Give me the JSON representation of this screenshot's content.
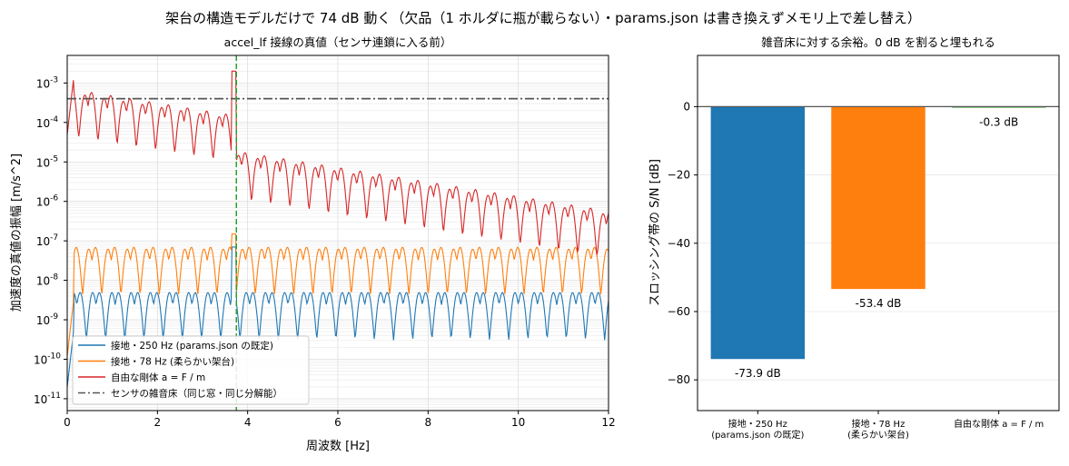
{
  "figure_title": "架台の構造モデルだけで 74 dB 動く（欠品（1 ホルダに瓶が載らない）・params.json は書き換えずメモリ上で差し替え）",
  "chart_data": [
    {
      "type": "line",
      "title": "accel_lf 接線の真値（センサ連鎖に入る前）",
      "xlabel": "周波数 [Hz]",
      "ylabel": "加速度の真値の振幅 [m/s^2]",
      "xlim": [
        0,
        12
      ],
      "ylim": [
        5e-12,
        0.005
      ],
      "yscale": "log",
      "grid": true,
      "legend_position": "lower-left",
      "x_ticks": [
        "0",
        "2",
        "4",
        "6",
        "8",
        "10",
        "12"
      ],
      "y_ticks": [
        "10^-11",
        "10^-10",
        "10^-9",
        "10^-8",
        "10^-7",
        "10^-6",
        "10^-5",
        "10^-4",
        "10^-3"
      ],
      "vline": {
        "x": 3.75,
        "color": "#2ca02c"
      },
      "series": [
        {
          "name": "接地・250 Hz (params.json の既定)",
          "color": "#1f77b4",
          "style": "solid",
          "base": 1.5e-09,
          "peak": 7e-08,
          "low_end": 2e-11,
          "envelope": "flat"
        },
        {
          "name": "接地・78 Hz (柔らかい架台)",
          "color": "#ff7f0e",
          "style": "solid",
          "base": 2e-08,
          "peak": 1.5e-07,
          "low_end": 1.2e-10,
          "envelope": "flat"
        },
        {
          "name": "自由な剛体 a = F / m",
          "color": "#d62728",
          "style": "solid",
          "base": 0.0002,
          "peak": 0.002,
          "low_end": 5e-05,
          "envelope": "decay"
        },
        {
          "name": "センサの雑音床（同じ窓・同じ分解能）",
          "color": "#555555",
          "style": "dashdot",
          "value": 0.0004
        }
      ]
    },
    {
      "type": "bar",
      "title": "雑音床に対する余裕。0 dB を割ると埋もれる",
      "ylabel": "スロッシング帯の S/N [dB]",
      "categories": [
        "接地・250 Hz\n(params.json の既定)",
        "接地・78 Hz\n(柔らかい架台)",
        "自由な剛体 a = F / m"
      ],
      "values": [
        -73.9,
        -53.4,
        -0.3
      ],
      "value_labels": [
        "-73.9 dB",
        "-53.4 dB",
        "-0.3 dB"
      ],
      "colors": [
        "#1f77b4",
        "#ff7f0e",
        "#2ca02c"
      ],
      "ylim": [
        -89,
        15
      ],
      "y_ticks": [
        0,
        -20,
        -40,
        -60,
        -80
      ],
      "grid": "y"
    }
  ]
}
